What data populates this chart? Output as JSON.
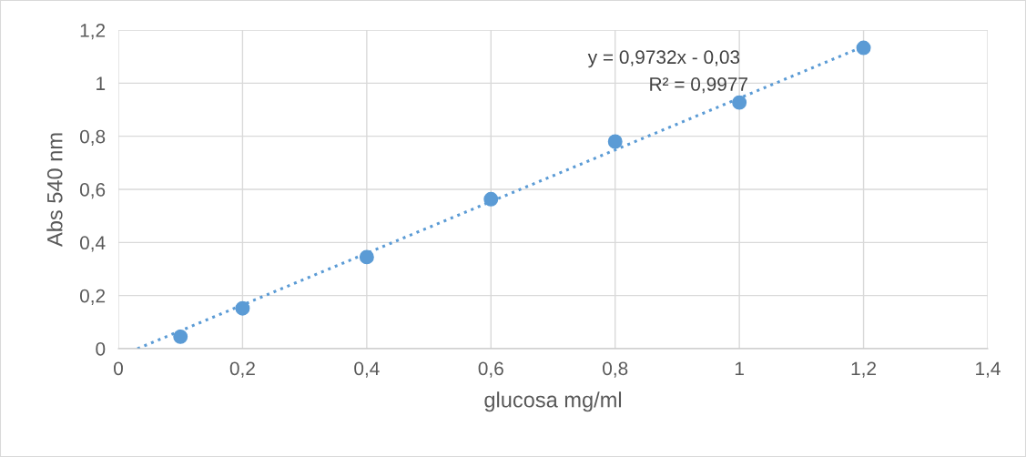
{
  "chart_data": {
    "type": "scatter",
    "xlabel": "glucosa mg/ml",
    "ylabel": "Abs 540 nm",
    "x": [
      0.1,
      0.2,
      0.4,
      0.6,
      0.8,
      1.0,
      1.2
    ],
    "series": [
      {
        "color": "#5b9bd5",
        "values": [
          0.045,
          0.152,
          0.345,
          0.563,
          0.78,
          0.927,
          1.133
        ],
        "marker": "circle"
      },
      {
        "type": "line",
        "color": "#5b9bd5",
        "x": [
          0.0308,
          1.2
        ],
        "values": [
          0,
          1.138
        ],
        "line_style": "dotted",
        "marker": "none"
      }
    ],
    "annotations": [
      "y = 0,9732x - 0,03",
      "R² = 0,9977"
    ],
    "xlim": [
      0,
      1.4
    ],
    "ylim": [
      0,
      1.2
    ],
    "xticks": [
      0,
      {
        "value": 0.2,
        "label": "0,2"
      },
      {
        "value": 0.4,
        "label": "0,4"
      },
      {
        "value": 0.6,
        "label": "0,6"
      },
      {
        "value": 0.8,
        "label": "0,8"
      },
      1,
      {
        "value": 1.2,
        "label": "1,2"
      },
      {
        "value": 1.4,
        "label": "1,4"
      }
    ],
    "yticks": [
      0,
      {
        "value": 0.2,
        "label": "0,2"
      },
      {
        "value": 0.4,
        "label": "0,4"
      },
      {
        "value": 0.6,
        "label": "0,6"
      },
      {
        "value": 0.8,
        "label": "0,8"
      },
      1,
      {
        "value": 1.2,
        "label": "1,2"
      }
    ],
    "grid": true,
    "legend": false
  }
}
